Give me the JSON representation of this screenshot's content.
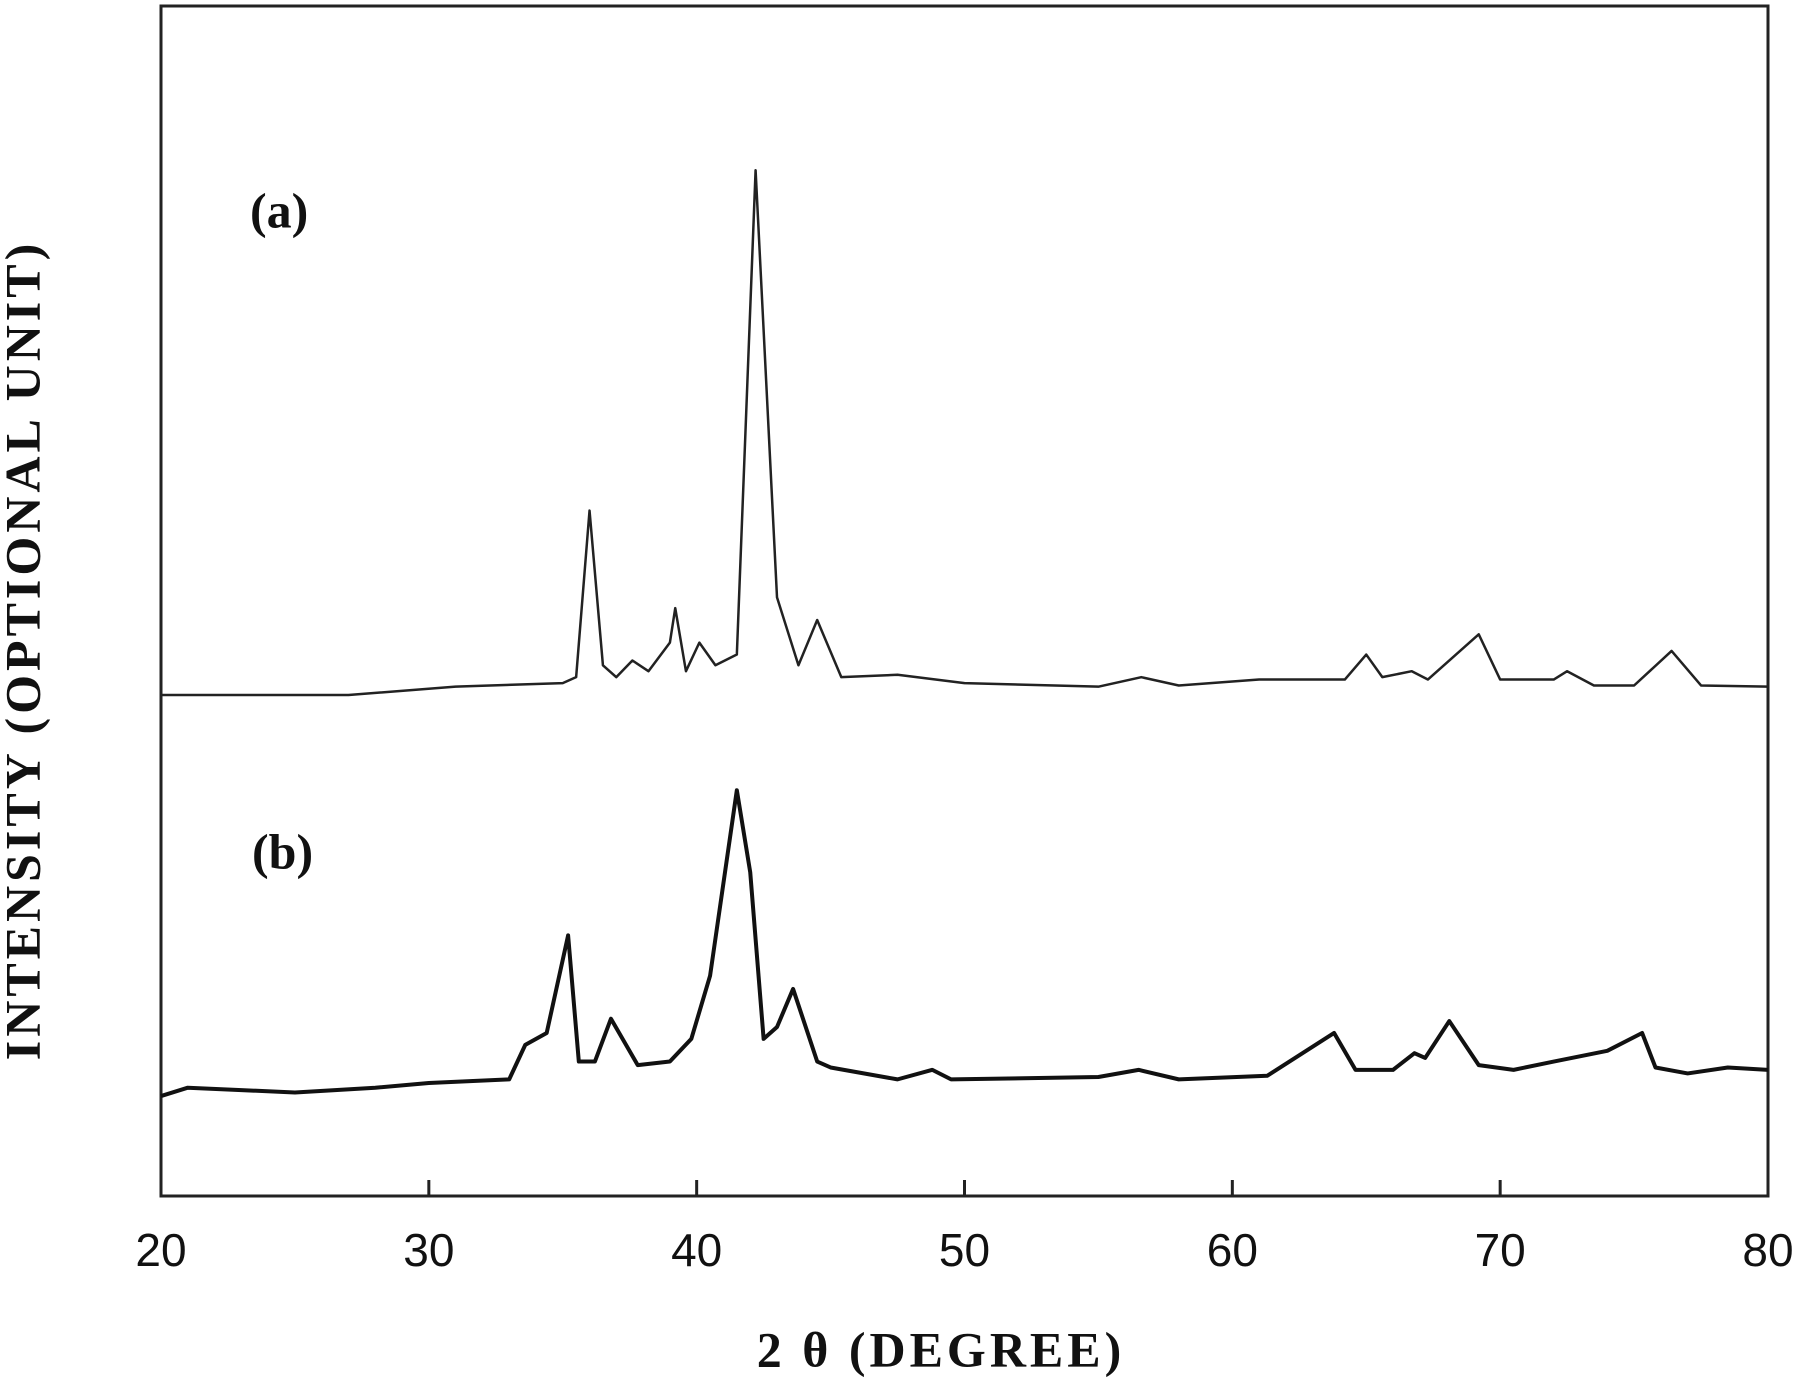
{
  "chart_data": {
    "type": "line",
    "xlabel": "2 θ (DEGREE)",
    "ylabel": "INTENSITY (OPTIONAL UNIT)",
    "annotations": [
      "(a)",
      "(b)"
    ],
    "xlim": [
      20,
      80
    ],
    "xticks": [
      20,
      30,
      40,
      50,
      60,
      70,
      80
    ],
    "ylim": [
      0,
      100
    ],
    "series": [
      {
        "name": "(a)",
        "color": "#222222",
        "x": [
          20,
          27,
          31,
          35,
          35.5,
          36.0,
          36.5,
          37,
          37.6,
          38.2,
          39.0,
          39.2,
          39.6,
          40.1,
          40.7,
          41.5,
          42.2,
          43.0,
          43.8,
          44.5,
          45.4,
          47.5,
          50,
          55,
          56.6,
          58,
          61,
          64.2,
          65,
          65.6,
          66.7,
          67.3,
          69.2,
          70.0,
          72,
          72.5,
          73.5,
          75,
          76.4,
          77.5,
          80
        ],
        "values": [
          42.1,
          42.1,
          42.8,
          43.1,
          43.6,
          57.6,
          44.6,
          43.6,
          45.0,
          44.1,
          46.5,
          49.4,
          44.1,
          46.5,
          44.6,
          45.5,
          86.2,
          50.3,
          44.6,
          48.4,
          43.6,
          43.8,
          43.1,
          42.8,
          43.6,
          42.9,
          43.4,
          43.4,
          45.5,
          43.6,
          44.1,
          43.4,
          47.2,
          43.4,
          43.4,
          44.1,
          42.9,
          42.9,
          45.8,
          42.9,
          42.8
        ]
      },
      {
        "name": "(b)",
        "color": "#111111",
        "x": [
          20,
          21,
          23,
          25,
          28,
          30,
          33,
          33.6,
          34.4,
          35.2,
          35.6,
          36.2,
          36.8,
          37.8,
          39,
          39.8,
          40.5,
          41.5,
          42.0,
          42.5,
          43.0,
          43.6,
          44.5,
          45,
          47.5,
          48.8,
          49.5,
          55,
          56.5,
          58,
          61.3,
          63.8,
          64.6,
          66,
          66.8,
          67.2,
          68.1,
          69.2,
          70.5,
          72,
          74,
          75.3,
          75.8,
          77,
          78.5,
          80
        ],
        "values": [
          8.4,
          9.1,
          8.9,
          8.7,
          9.1,
          9.5,
          9.8,
          12.7,
          13.7,
          21.9,
          11.3,
          11.3,
          14.9,
          11.0,
          11.3,
          13.2,
          18.5,
          34.1,
          27.2,
          13.2,
          14.2,
          17.4,
          11.3,
          10.8,
          9.8,
          10.6,
          9.8,
          10.0,
          10.6,
          9.8,
          10.1,
          13.7,
          10.6,
          10.6,
          12.0,
          11.6,
          14.7,
          11.0,
          10.6,
          11.3,
          12.2,
          13.7,
          10.8,
          10.3,
          10.8,
          10.6
        ]
      }
    ]
  }
}
